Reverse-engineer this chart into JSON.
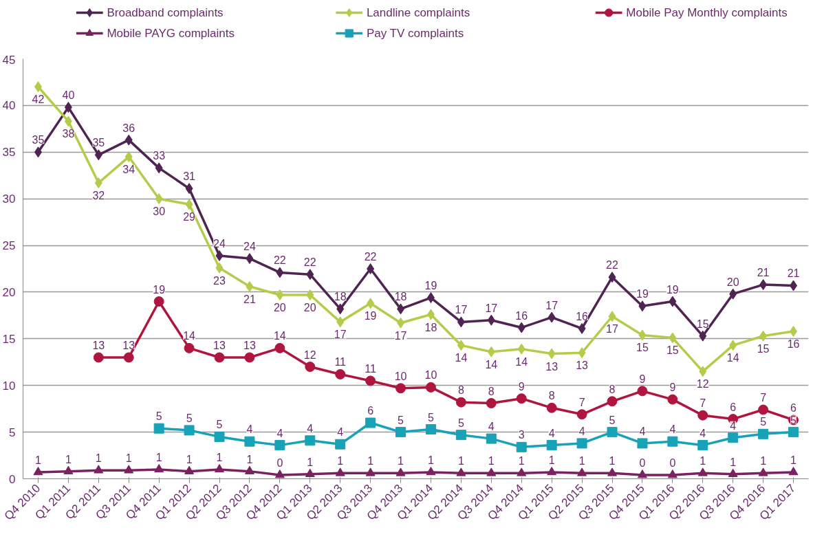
{
  "chart_data": {
    "type": "line",
    "categories": [
      "Q4 2010",
      "Q1 2011",
      "Q2 2011",
      "Q3 2011",
      "Q4 2011",
      "Q1 2012",
      "Q2 2012",
      "Q3 2012",
      "Q4 2012",
      "Q1 2013",
      "Q2 2013",
      "Q3 2013",
      "Q4 2013",
      "Q1 2014",
      "Q2 2014",
      "Q3 2014",
      "Q4 2014",
      "Q1 2015",
      "Q2 2015",
      "Q3 2015",
      "Q4 2015",
      "Q1 2016",
      "Q2 2016",
      "Q3 2016",
      "Q4 2016",
      "Q1 2017"
    ],
    "ylim": [
      0,
      45
    ],
    "yticks": [
      0,
      5,
      10,
      15,
      20,
      25,
      30,
      35,
      40,
      45
    ],
    "grid": "y",
    "legend": "top",
    "line_style": "solid",
    "series": [
      {
        "name": "Broadband complaints",
        "color": "#4f2352",
        "marker": "diamond",
        "values": [
          35,
          39.8,
          34.7,
          36.3,
          33.3,
          31.1,
          23.9,
          23.6,
          22.1,
          21.9,
          18.2,
          22.5,
          18.2,
          19.4,
          16.8,
          17.0,
          16.2,
          17.3,
          16.1,
          21.6,
          18.5,
          19.0,
          15.3,
          19.8,
          20.8,
          20.7
        ],
        "value_labels": [
          "35",
          "40",
          "35",
          "36",
          "33",
          "31",
          "24",
          "24",
          "22",
          "22",
          "18",
          "22",
          "18",
          "19",
          "17",
          "17",
          "16",
          "17",
          "16",
          "22",
          "19",
          "19",
          "15",
          "20",
          "21",
          "21"
        ]
      },
      {
        "name": "Landline complaints",
        "color": "#b5cc4a",
        "marker": "diamond",
        "values": [
          42,
          38.3,
          31.7,
          34.5,
          30.0,
          29.4,
          22.6,
          20.6,
          19.7,
          19.7,
          16.8,
          18.8,
          16.7,
          17.6,
          14.3,
          13.6,
          13.9,
          13.4,
          13.5,
          17.4,
          15.4,
          15.1,
          11.5,
          14.3,
          15.3,
          15.8
        ],
        "value_labels": [
          "42",
          "38",
          "32",
          "34",
          "30",
          "29",
          "23",
          "21",
          "20",
          "20",
          "17",
          "19",
          "17",
          "18",
          "14",
          "14",
          "14",
          "13",
          "13",
          "17",
          "15",
          "15",
          "12",
          "14",
          "15",
          "16"
        ]
      },
      {
        "name": "Mobile Pay Monthly complaints",
        "color": "#b01540",
        "marker": "circle",
        "values": [
          null,
          null,
          13,
          13,
          19,
          14,
          13,
          13,
          14,
          12,
          11.2,
          10.5,
          9.7,
          9.8,
          8.2,
          8.1,
          8.6,
          7.6,
          6.9,
          8.3,
          9.4,
          8.5,
          6.8,
          6.4,
          7.4,
          6.3
        ],
        "value_labels": [
          null,
          null,
          "13",
          "13",
          "19",
          "14",
          "13",
          "13",
          "14",
          "12",
          "11",
          "11",
          "10",
          "10",
          "8",
          "8",
          "9",
          "8",
          "7",
          "8",
          "9",
          "9",
          "7",
          "6",
          "7",
          "6"
        ]
      },
      {
        "name": "Mobile PAYG complaints",
        "color": "#7b2060",
        "marker": "triangle",
        "values": [
          0.7,
          0.8,
          0.9,
          0.9,
          1.0,
          0.8,
          1.0,
          0.8,
          0.4,
          0.5,
          0.6,
          0.6,
          0.6,
          0.7,
          0.6,
          0.6,
          0.6,
          0.7,
          0.6,
          0.6,
          0.4,
          0.4,
          0.6,
          0.5,
          0.6,
          0.7
        ],
        "value_labels": [
          "1",
          "1",
          "1",
          "1",
          "1",
          "1",
          "1",
          "1",
          "0",
          "1",
          "1",
          "1",
          "1",
          "1",
          "1",
          "1",
          "1",
          "1",
          "1",
          "1",
          "0",
          "0",
          "1",
          "1",
          "1",
          "1"
        ]
      },
      {
        "name": "Pay TV complaints",
        "color": "#17a2b8",
        "marker": "square",
        "values": [
          null,
          null,
          null,
          null,
          5.4,
          5.2,
          4.5,
          4.0,
          3.6,
          4.1,
          3.7,
          6.0,
          5.0,
          5.3,
          4.7,
          4.3,
          3.4,
          3.6,
          3.8,
          5.0,
          3.8,
          4.0,
          3.6,
          4.4,
          4.8,
          5.0
        ],
        "value_labels": [
          null,
          null,
          null,
          null,
          "5",
          "5",
          "5",
          "4",
          "4",
          "4",
          "4",
          "6",
          "5",
          "5",
          "5",
          "4",
          "3",
          "4",
          "4",
          "5",
          "4",
          "4",
          "4",
          "4",
          "5",
          "5"
        ]
      }
    ]
  }
}
